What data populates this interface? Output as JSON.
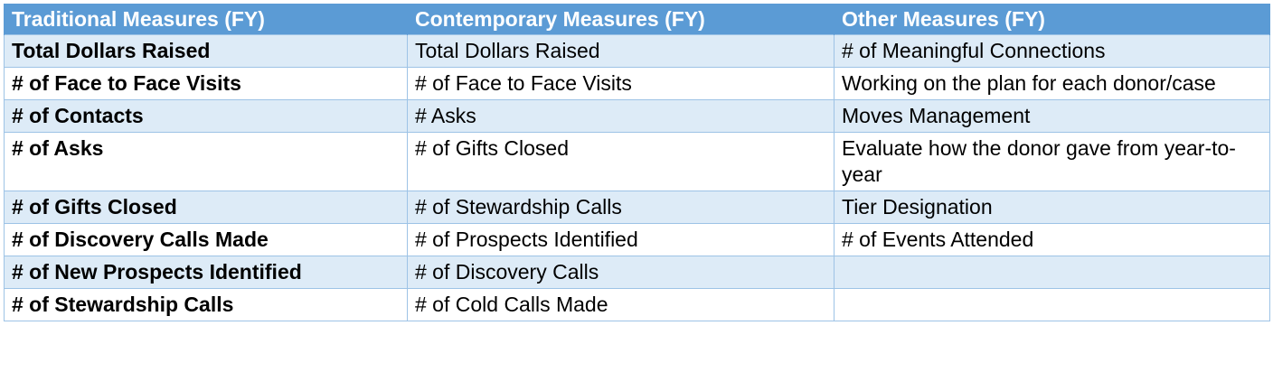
{
  "table": {
    "headers": [
      "Traditional Measures (FY)",
      "Contemporary Measures (FY)",
      "Other Measures (FY)"
    ],
    "rows": [
      [
        "Total Dollars Raised",
        "Total Dollars Raised",
        "# of Meaningful Connections"
      ],
      [
        "# of Face to Face Visits",
        "# of Face to Face Visits",
        "Working on the plan for each donor/case"
      ],
      [
        "# of Contacts",
        "# Asks",
        "Moves Management"
      ],
      [
        "# of Asks",
        "# of Gifts Closed",
        "Evaluate how the donor gave from year-to-year"
      ],
      [
        "# of Gifts Closed",
        "# of Stewardship Calls",
        "Tier Designation"
      ],
      [
        "# of Discovery Calls Made",
        "# of Prospects Identified",
        "# of Events Attended"
      ],
      [
        "# of New Prospects Identified",
        "# of Discovery Calls",
        ""
      ],
      [
        "# of Stewardship Calls",
        "# of Cold Calls Made",
        ""
      ]
    ]
  },
  "colors": {
    "header_bg": "#5b9bd5",
    "header_text": "#ffffff",
    "band_bg": "#ddebf7",
    "border": "#9dc3e6"
  }
}
